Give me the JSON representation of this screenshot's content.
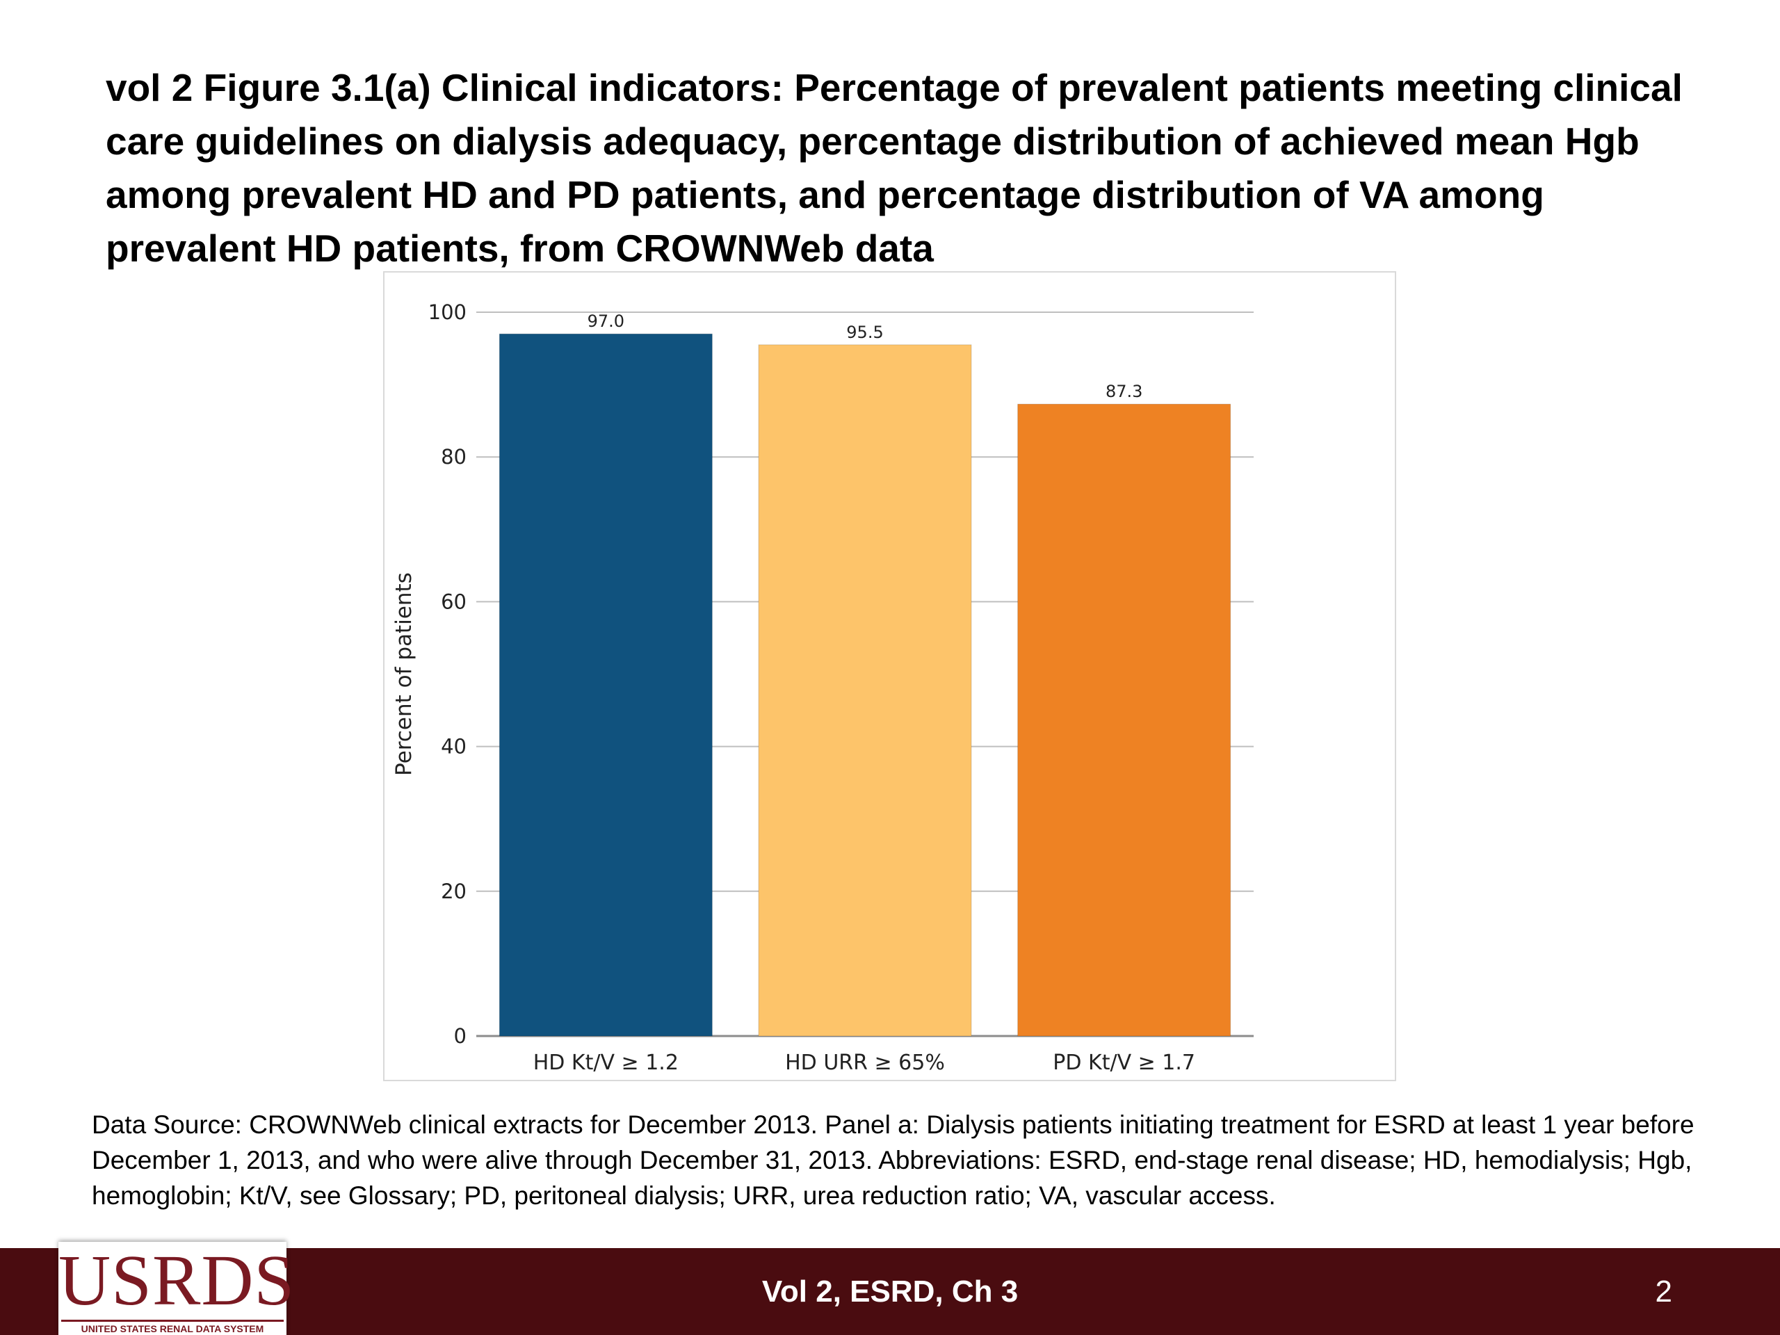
{
  "slide": {
    "title": "vol 2  Figure 3.1(a) Clinical indicators: Percentage of prevalent patients meeting clinical care guidelines on dialysis adequacy, percentage distribution of achieved mean Hgb among prevalent HD and PD patients, and percentage distribution of VA among prevalent HD patients, from CROWNWeb data",
    "source_note": "Data Source: CROWNWeb clinical extracts for December 2013. Panel a: Dialysis patients initiating treatment for ESRD at least 1 year before December 1, 2013, and who were alive through December 31, 2013. Abbreviations: ESRD, end-stage renal disease; HD, hemodialysis; Hgb, hemoglobin; Kt/V, see Glossary; PD, peritoneal dialysis; URR, urea reduction ratio; VA, vascular access."
  },
  "footer": {
    "chapter": "Vol 2, ESRD, Ch 3",
    "page_number": "2",
    "logo_text": "USRDS",
    "logo_subtext": "UNITED STATES RENAL DATA SYSTEM",
    "background_color": "#4a0c10"
  },
  "chart_data": {
    "type": "bar",
    "title": "",
    "xlabel": "",
    "ylabel": "Percent of patients",
    "ylim": [
      0,
      100
    ],
    "yticks": [
      0,
      20,
      40,
      60,
      80,
      100
    ],
    "grid": true,
    "categories": [
      "HD Kt/V ≥ 1.2",
      "HD URR ≥ 65%",
      "PD Kt/V ≥ 1.7"
    ],
    "values": [
      97.0,
      95.5,
      87.3
    ],
    "value_labels": [
      "97.0",
      "95.5",
      "87.3"
    ],
    "colors": [
      "#10527e",
      "#fdc46a",
      "#ee8223"
    ]
  }
}
